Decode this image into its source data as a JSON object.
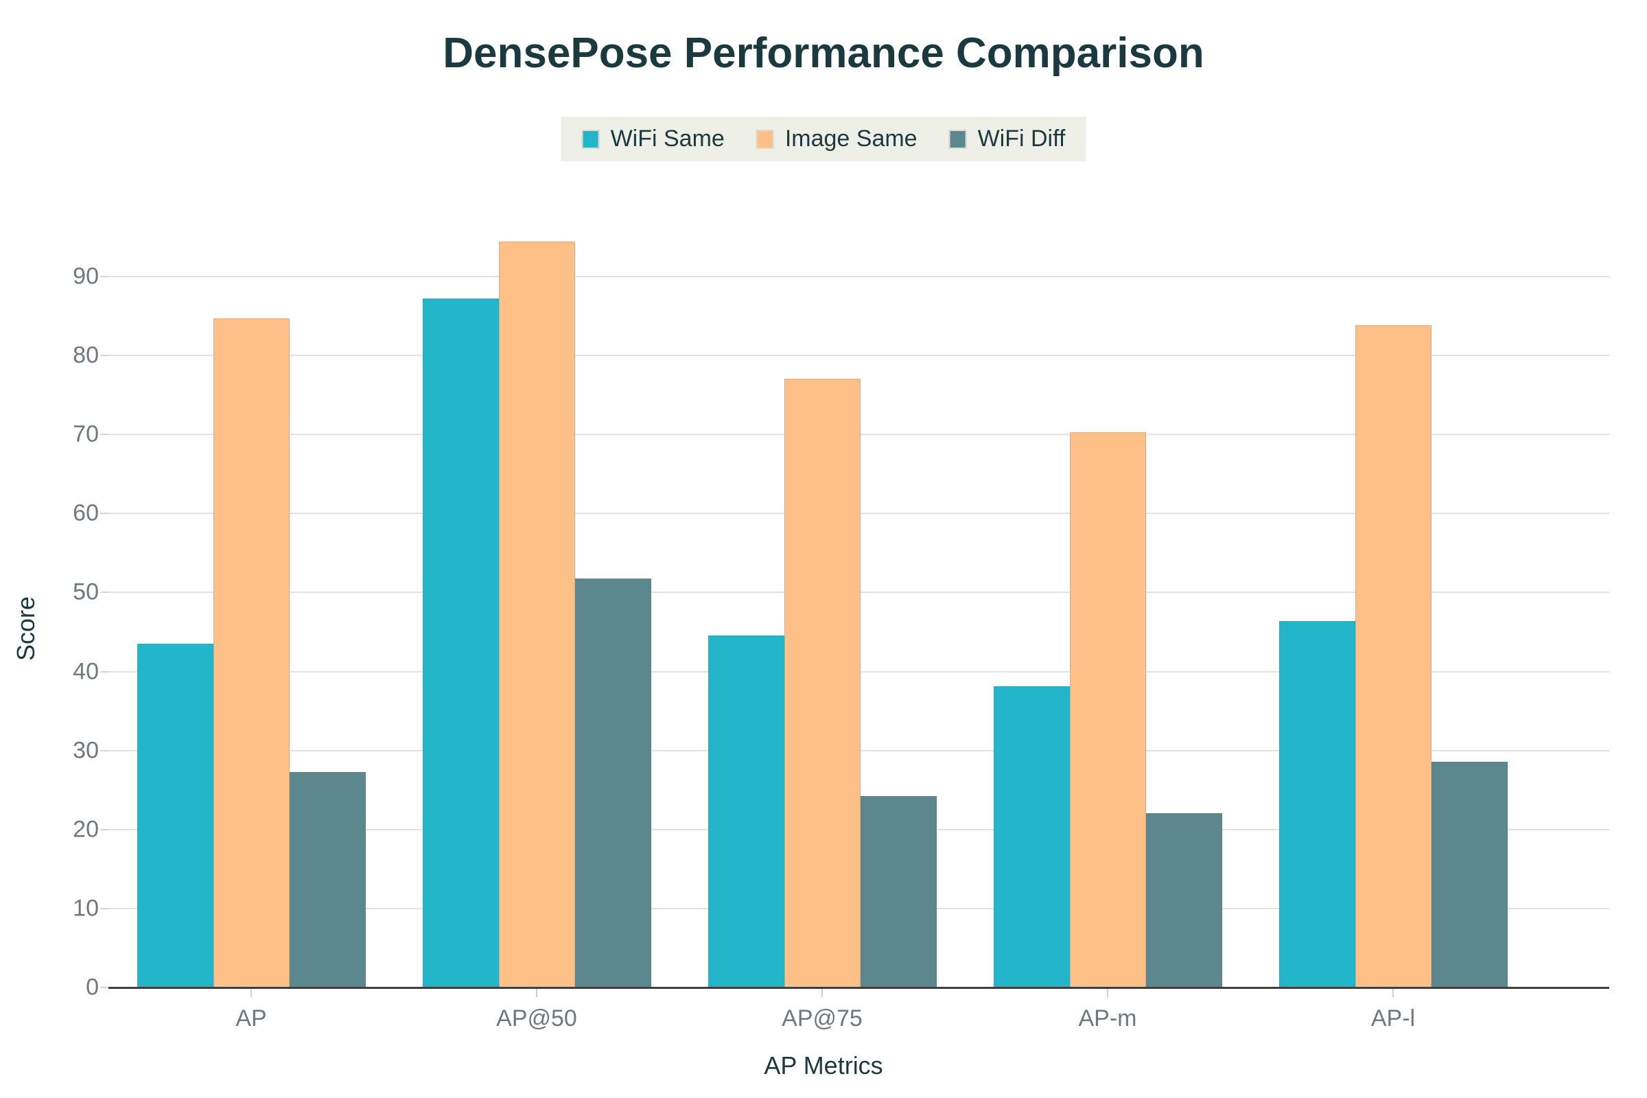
{
  "chart_data": {
    "type": "bar",
    "title": "DensePose Performance Comparison",
    "xlabel": "AP Metrics",
    "ylabel": "Score",
    "categories": [
      "AP",
      "AP@50",
      "AP@75",
      "AP-m",
      "AP-l"
    ],
    "series": [
      {
        "name": "WiFi Same",
        "color": "#23b5c9",
        "values": [
          43.5,
          87.2,
          44.6,
          38.1,
          46.4
        ]
      },
      {
        "name": "Image Same",
        "color": "#fec087",
        "values": [
          84.7,
          94.4,
          77.1,
          70.3,
          83.8
        ]
      },
      {
        "name": "WiFi Diff",
        "color": "#5d878e",
        "values": [
          27.3,
          51.8,
          24.2,
          22.1,
          28.6
        ]
      }
    ],
    "ylim": [
      0,
      97
    ],
    "yticks": [
      0,
      10,
      20,
      30,
      40,
      50,
      60,
      70,
      80,
      90
    ],
    "grid": true,
    "legend_position": "top-center",
    "colors": {
      "title_text": "#1b3a40",
      "tick_text": "#6e7880",
      "gridline": "#e2e2e2",
      "axis_line": "#3f3f3f",
      "legend_background": "#eef0e8",
      "page_background": "#ffffff"
    }
  }
}
